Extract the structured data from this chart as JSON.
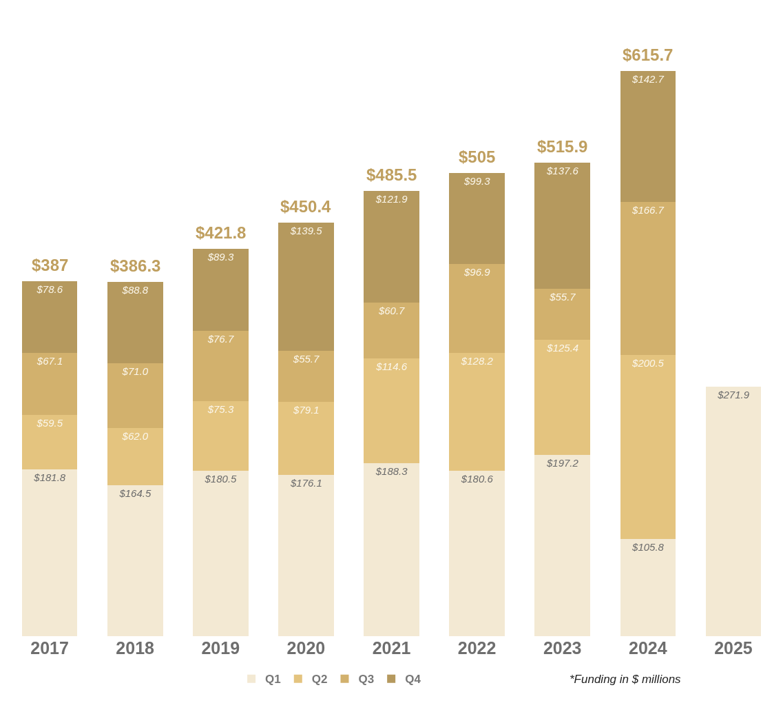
{
  "chart_data": {
    "type": "bar",
    "stacked": true,
    "categories": [
      "2017",
      "2018",
      "2019",
      "2020",
      "2021",
      "2022",
      "2023",
      "2024",
      "2025"
    ],
    "series": [
      {
        "name": "Q1",
        "color": "#f3e9d3",
        "values": [
          181.8,
          164.5,
          180.5,
          176.1,
          188.3,
          180.6,
          197.2,
          105.8,
          271.9
        ],
        "value_labels": [
          "$181.8",
          "$164.5",
          "$180.5",
          "$176.1",
          "$188.3",
          "$180.6",
          "$197.2",
          "$105.8",
          "$271.9"
        ]
      },
      {
        "name": "Q2",
        "color": "#e4c47f",
        "values": [
          59.5,
          62.0,
          75.3,
          79.1,
          114.6,
          128.2,
          125.4,
          200.5,
          null
        ],
        "value_labels": [
          "$59.5",
          "$62.0",
          "$75.3",
          "$79.1",
          "$114.6",
          "$128.2",
          "$125.4",
          "$200.5",
          null
        ]
      },
      {
        "name": "Q3",
        "color": "#d2b16d",
        "values": [
          67.1,
          71.0,
          76.7,
          55.7,
          60.7,
          96.9,
          55.7,
          166.7,
          null
        ],
        "value_labels": [
          "$67.1",
          "$71.0",
          "$76.7",
          "$55.7",
          "$60.7",
          "$96.9",
          "$55.7",
          "$166.7",
          null
        ]
      },
      {
        "name": "Q4",
        "color": "#b5995e",
        "values": [
          78.6,
          88.8,
          89.3,
          139.5,
          121.9,
          99.3,
          137.6,
          142.7,
          null
        ],
        "value_labels": [
          "$78.6",
          "$88.8",
          "$89.3",
          "$139.5",
          "$121.9",
          "$99.3",
          "$137.6",
          "$142.7",
          null
        ]
      }
    ],
    "totals": [
      "$387",
      "$386.3",
      "$421.8",
      "$450.4",
      "$485.5",
      "$505",
      "$515.9",
      "$615.7",
      null
    ],
    "tick_labels": "x",
    "legend": "bottom",
    "grid": false,
    "annotations": [
      "*Funding in $ millions"
    ]
  }
}
